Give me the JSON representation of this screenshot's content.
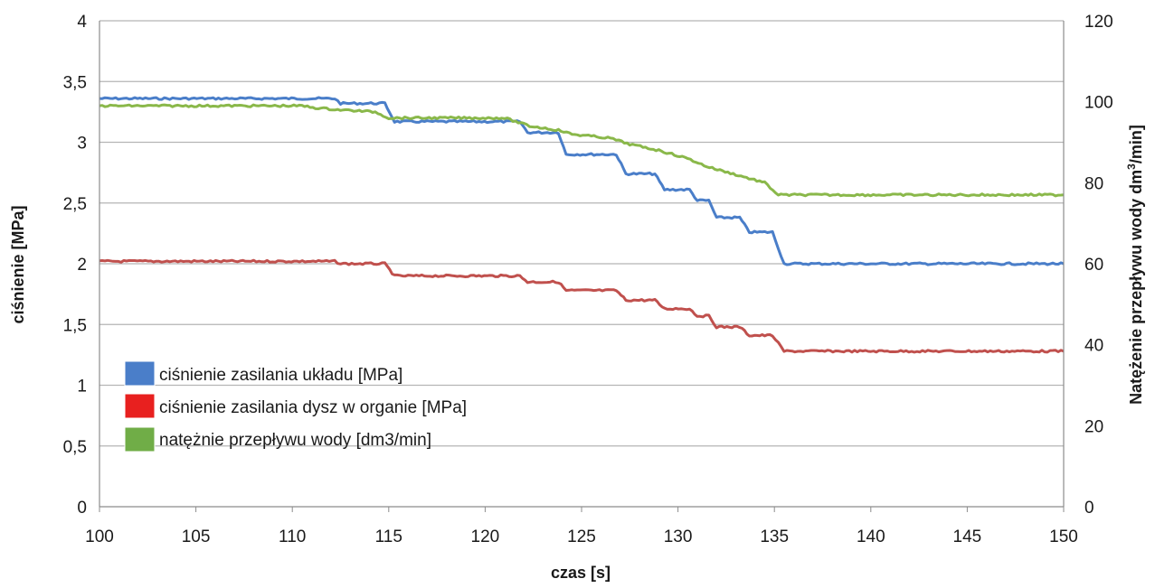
{
  "chart_data": {
    "type": "line",
    "xlabel": "czas [s]",
    "ylabel_left": "ciśnienie [MPa]",
    "ylabel_right_parts": [
      "Natężenie przepływu wody dm",
      "3",
      "/min]"
    ],
    "xlim": [
      100,
      150
    ],
    "ylim_left": [
      0,
      4
    ],
    "ylim_right": [
      0,
      120
    ],
    "xticks": [
      "100",
      "105",
      "110",
      "115",
      "120",
      "125",
      "130",
      "135",
      "140",
      "145",
      "150"
    ],
    "yticks_left": [
      "0",
      "0,5",
      "1",
      "1,5",
      "2",
      "2,5",
      "3",
      "3,5",
      "4"
    ],
    "yticks_right": [
      "0",
      "20",
      "40",
      "60",
      "80",
      "100",
      "120"
    ],
    "grid": true,
    "legend_position": "lower-left",
    "series": [
      {
        "name": "ciśnienie zasilania układu [MPa]",
        "color": "#4a7ec9",
        "axis": "left",
        "points": [
          [
            100,
            3.36
          ],
          [
            112.2,
            3.36
          ],
          [
            112.5,
            3.32
          ],
          [
            114.8,
            3.32
          ],
          [
            115.3,
            3.17
          ],
          [
            121.8,
            3.17
          ],
          [
            122.2,
            3.08
          ],
          [
            123.8,
            3.08
          ],
          [
            124.2,
            2.9
          ],
          [
            126.8,
            2.9
          ],
          [
            127.3,
            2.74
          ],
          [
            128.8,
            2.74
          ],
          [
            129.3,
            2.61
          ],
          [
            130.6,
            2.61
          ],
          [
            131.0,
            2.52
          ],
          [
            131.6,
            2.52
          ],
          [
            132.0,
            2.38
          ],
          [
            133.2,
            2.38
          ],
          [
            133.7,
            2.26
          ],
          [
            134.9,
            2.26
          ],
          [
            135.5,
            2.0
          ],
          [
            150,
            2.0
          ]
        ]
      },
      {
        "name": "ciśnienie zasilania dysz w organie [MPa]",
        "color": "#c0504d",
        "axis": "left",
        "points": [
          [
            100,
            2.02
          ],
          [
            112.2,
            2.02
          ],
          [
            112.5,
            2.0
          ],
          [
            114.8,
            2.0
          ],
          [
            115.3,
            1.9
          ],
          [
            121.8,
            1.9
          ],
          [
            122.2,
            1.85
          ],
          [
            123.8,
            1.85
          ],
          [
            124.2,
            1.78
          ],
          [
            126.8,
            1.78
          ],
          [
            127.3,
            1.7
          ],
          [
            128.8,
            1.7
          ],
          [
            129.3,
            1.63
          ],
          [
            130.6,
            1.63
          ],
          [
            131.0,
            1.57
          ],
          [
            131.6,
            1.57
          ],
          [
            132.0,
            1.48
          ],
          [
            133.2,
            1.48
          ],
          [
            133.7,
            1.41
          ],
          [
            134.9,
            1.41
          ],
          [
            135.5,
            1.28
          ],
          [
            150,
            1.28
          ]
        ]
      },
      {
        "name": "natężnie przepływu wody [dm3/min]",
        "color": "#8ab84a",
        "axis": "right",
        "points": [
          [
            100,
            99
          ],
          [
            110.5,
            99
          ],
          [
            111.2,
            98.5
          ],
          [
            112.5,
            98
          ],
          [
            114.3,
            97.5
          ],
          [
            115.0,
            96
          ],
          [
            121.0,
            96
          ],
          [
            122.3,
            94
          ],
          [
            123.8,
            93
          ],
          [
            124.5,
            92
          ],
          [
            126.5,
            91
          ],
          [
            127.5,
            89.5
          ],
          [
            129.0,
            88
          ],
          [
            130.5,
            86
          ],
          [
            131.5,
            84
          ],
          [
            133.0,
            82
          ],
          [
            134.5,
            80
          ],
          [
            135.2,
            77
          ],
          [
            150,
            77
          ]
        ]
      }
    ]
  }
}
